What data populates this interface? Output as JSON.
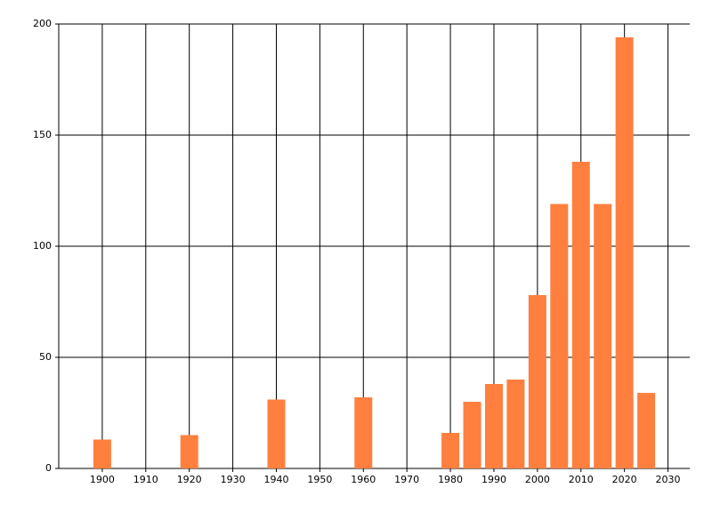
{
  "chart_data": {
    "type": "bar",
    "x": [
      1900,
      1920,
      1940,
      1960,
      1980,
      1985,
      1990,
      1995,
      2000,
      2005,
      2010,
      2015,
      2020,
      2025
    ],
    "values": [
      13,
      15,
      31,
      32,
      16,
      30,
      38,
      40,
      78,
      119,
      138,
      119,
      194,
      34
    ],
    "color": "#ff7f3f",
    "xlim": [
      1890,
      2035
    ],
    "xticks": [
      1900,
      1910,
      1920,
      1930,
      1940,
      1950,
      1960,
      1970,
      1980,
      1990,
      2000,
      2010,
      2020,
      2030
    ],
    "ylim": [
      0,
      200
    ],
    "yticks": [
      0,
      50,
      100,
      150,
      200
    ],
    "grid": true
  }
}
